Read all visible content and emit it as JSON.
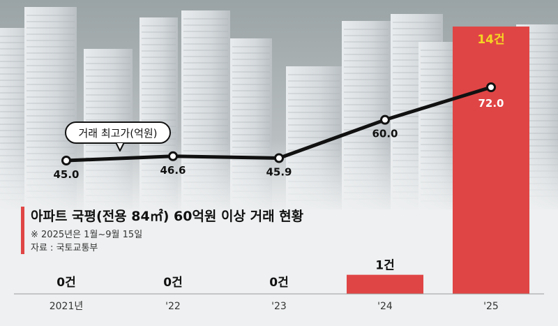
{
  "chart_data": [
    {
      "type": "line",
      "title": "",
      "legend": "거래 최고가(억원)",
      "categories": [
        "2021년",
        "'22",
        "'23",
        "'24",
        "'25"
      ],
      "values": [
        45.0,
        46.6,
        45.9,
        60.0,
        72.0
      ],
      "value_labels": [
        "45.0",
        "46.6",
        "45.9",
        "60.0",
        "72.0"
      ],
      "line_color": "#111111"
    },
    {
      "type": "bar",
      "title": "아파트 국평(전용 84㎡) 60억원 이상 거래 현황",
      "note": "※ 2025년은 1월~9월 15일",
      "source": "자료 : 국토교통부",
      "categories": [
        "2021년",
        "'22",
        "'23",
        "'24",
        "'25"
      ],
      "values": [
        0,
        0,
        0,
        1,
        14
      ],
      "value_labels": [
        "0건",
        "0건",
        "0건",
        "1건",
        "14건"
      ],
      "bar_color": "#e04545",
      "highlight_label_color": "#f5d623"
    }
  ]
}
